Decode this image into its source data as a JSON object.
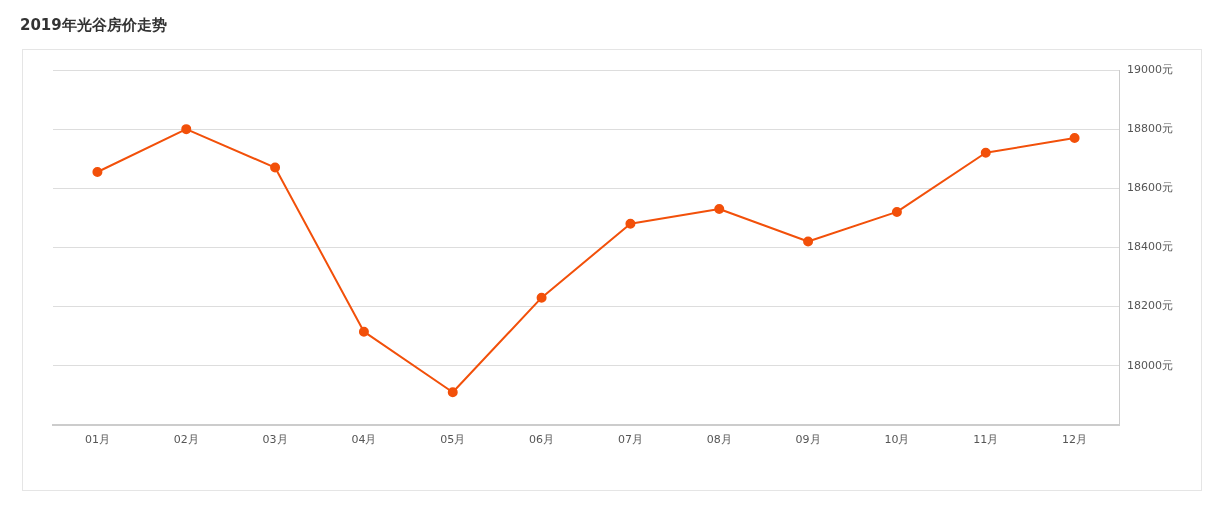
{
  "chart_data": {
    "type": "line",
    "title": "2019年光谷房价走势",
    "categories": [
      "01月",
      "02月",
      "03月",
      "04月",
      "05月",
      "06月",
      "07月",
      "08月",
      "09月",
      "10月",
      "11月",
      "12月"
    ],
    "series": [
      {
        "color": "#f2500a",
        "values": [
          18655,
          18800,
          18670,
          18115,
          17910,
          18230,
          18480,
          18530,
          18420,
          18520,
          18720,
          18770
        ]
      }
    ],
    "ylim": [
      17800,
      19000
    ],
    "yticks": [
      {
        "value": 18000,
        "label": "18000元"
      },
      {
        "value": 18200,
        "label": "18200元"
      },
      {
        "value": 18400,
        "label": "18400元"
      },
      {
        "value": 18600,
        "label": "18600元"
      },
      {
        "value": 18800,
        "label": "18800元"
      },
      {
        "value": 19000,
        "label": "19000元"
      }
    ],
    "grid": "y",
    "legend": false,
    "marker": "circle",
    "line_style": "solid"
  }
}
